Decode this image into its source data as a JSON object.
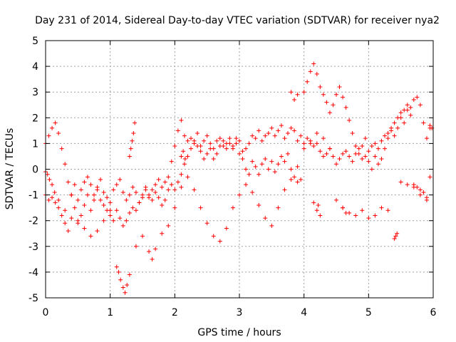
{
  "chart_data": {
    "type": "scatter",
    "title": "Day 231 of 2014, Sidereal Day-to-day VTEC variation (SDTVAR) for receiver nya2",
    "xlabel": "GPS time / hours",
    "ylabel": "SDTVAR / TECUs",
    "xlim": [
      0,
      6
    ],
    "ylim": [
      -5,
      5
    ],
    "xticks": [
      "0",
      "1",
      "2",
      "3",
      "4",
      "5",
      "6"
    ],
    "yticks": [
      "5",
      "4",
      "3",
      "2",
      "1",
      "0",
      "-1",
      "-2",
      "-3",
      "-4",
      "-5"
    ],
    "grid": true,
    "marker": "+",
    "color": "#ff0000",
    "series": [
      {
        "name": "SDTVAR",
        "x": [
          0.0,
          0.05,
          0.1,
          0.15,
          0.2,
          0.25,
          0.3,
          0.35,
          0.4,
          0.45,
          0.5,
          0.55,
          0.6,
          0.65,
          0.7,
          0.75,
          0.8,
          0.85,
          0.9,
          0.95,
          1.0,
          1.05,
          1.1,
          1.15,
          1.2,
          1.25,
          1.3,
          1.35,
          1.4,
          1.45,
          1.5,
          1.55,
          1.6,
          1.65,
          1.7,
          1.75,
          1.8,
          1.85,
          1.9,
          1.95,
          2.0,
          2.05,
          2.1,
          2.15,
          2.2,
          2.25,
          2.3,
          2.35,
          2.4,
          2.45,
          2.5,
          2.55,
          2.6,
          2.65,
          2.7,
          2.75,
          2.8,
          2.85,
          2.9,
          2.95,
          3.0,
          3.05,
          3.1,
          3.15,
          3.2,
          3.25,
          3.3,
          3.35,
          3.4,
          3.45,
          3.5,
          3.55,
          3.6,
          3.65,
          3.7,
          3.75,
          3.8,
          3.85,
          3.9,
          3.95,
          4.0,
          4.05,
          4.1,
          4.15,
          4.2,
          4.25,
          4.3,
          4.35,
          4.4,
          4.45,
          4.5,
          4.55,
          4.6,
          4.65,
          4.7,
          4.75,
          4.8,
          4.85,
          4.9,
          4.95,
          5.0,
          5.05,
          5.1,
          5.15,
          5.2,
          5.25,
          5.3,
          5.35,
          5.4,
          5.45,
          5.5,
          5.55,
          5.6,
          5.65,
          5.7,
          5.75,
          5.8,
          5.85,
          5.9,
          5.95,
          0.0,
          0.05,
          0.1,
          0.15,
          0.2,
          0.25,
          0.3,
          0.35,
          0.4,
          0.45,
          0.5,
          0.55,
          0.6,
          0.65,
          0.7,
          0.75,
          0.8,
          0.85,
          0.9,
          0.95,
          1.0,
          1.05,
          1.1,
          1.15,
          1.2,
          1.25,
          1.3,
          1.35,
          1.4,
          1.45,
          1.5,
          1.55,
          1.6,
          1.65,
          1.7,
          1.75,
          1.8,
          1.85,
          1.9,
          1.95,
          2.0,
          2.05,
          2.1,
          2.15,
          2.2,
          2.25,
          2.3,
          2.35,
          2.4,
          2.45,
          2.5,
          2.55,
          2.6,
          2.65,
          2.7,
          2.75,
          2.8,
          2.85,
          2.9,
          2.95,
          3.0,
          3.05,
          3.1,
          3.15,
          3.2,
          3.25,
          3.3,
          3.35,
          3.4,
          3.45,
          3.5,
          3.55,
          3.6,
          3.65,
          3.7,
          3.75,
          3.8,
          3.85,
          3.9,
          3.95,
          4.0,
          4.05,
          4.1,
          4.15,
          4.2,
          4.25,
          4.3,
          4.35,
          4.4,
          4.45,
          4.5,
          4.55,
          4.6,
          4.65,
          4.7,
          4.75,
          4.8,
          4.85,
          4.9,
          4.95,
          5.0,
          5.05,
          5.1,
          5.15,
          5.2,
          5.25,
          5.3,
          5.35,
          5.4,
          5.45,
          5.5,
          5.55,
          5.6,
          5.65,
          5.7,
          5.75,
          5.8,
          5.85,
          5.9,
          5.95,
          0.0,
          0.03,
          0.06,
          0.1,
          0.14,
          0.2,
          0.3,
          0.4,
          0.5,
          0.6,
          0.7,
          0.8,
          0.9,
          1.0,
          1.1,
          1.13,
          1.16,
          1.2,
          1.23,
          1.26,
          1.3,
          1.4,
          1.5,
          1.6,
          1.65,
          1.7,
          1.8,
          1.9,
          2.0,
          2.1,
          2.2,
          2.3,
          2.4,
          2.5,
          2.6,
          2.7,
          2.8,
          2.9,
          3.0,
          3.1,
          3.2,
          3.3,
          3.4,
          3.5,
          3.6,
          3.7,
          3.8,
          3.9,
          4.0,
          4.1,
          4.2,
          4.3,
          4.4,
          4.5,
          4.6,
          4.7,
          4.8,
          4.9,
          5.0,
          5.1,
          5.2,
          5.3,
          5.4,
          5.42,
          5.44,
          5.5,
          5.6,
          5.7,
          5.8,
          5.9,
          1.3,
          1.32,
          1.34,
          1.36,
          1.38,
          2.1,
          2.13,
          2.16,
          3.8,
          3.85,
          3.9,
          4.15,
          4.2,
          4.22,
          4.25,
          4.6,
          4.65,
          5.95,
          5.98
        ],
        "y": [
          -1.0,
          -1.2,
          -1.1,
          -1.3,
          -1.5,
          -1.8,
          -2.1,
          -2.4,
          -1.0,
          -1.5,
          -2.0,
          -1.8,
          -1.4,
          -1.0,
          -1.6,
          -1.2,
          -0.8,
          -1.2,
          -1.4,
          -1.6,
          -1.8,
          -2.0,
          -1.6,
          -1.9,
          -2.2,
          -2.0,
          -1.7,
          -1.5,
          -1.6,
          -1.3,
          -1.1,
          -0.7,
          -1.0,
          -1.2,
          -0.9,
          -1.1,
          -1.4,
          -1.2,
          -0.8,
          0.3,
          0.9,
          1.5,
          1.9,
          1.3,
          1.1,
          1.2,
          1.0,
          1.4,
          0.9,
          1.1,
          1.3,
          1.0,
          0.8,
          1.1,
          1.2,
          0.9,
          1.0,
          1.2,
          0.8,
          1.0,
          1.1,
          0.7,
          0.8,
          1.0,
          1.3,
          1.2,
          1.5,
          1.1,
          1.3,
          1.4,
          1.6,
          1.3,
          1.5,
          1.7,
          1.2,
          1.4,
          1.6,
          1.5,
          1.1,
          1.3,
          1.0,
          1.2,
          1.1,
          0.9,
          1.0,
          0.7,
          0.5,
          0.6,
          0.8,
          0.5,
          0.2,
          0.4,
          0.6,
          0.7,
          0.5,
          0.3,
          0.6,
          0.8,
          0.4,
          0.5,
          0.7,
          0.9,
          1.0,
          0.8,
          1.1,
          1.3,
          1.4,
          1.6,
          1.8,
          2.0,
          2.2,
          2.3,
          2.5,
          2.4,
          2.7,
          2.8,
          2.5,
          1.8,
          1.2,
          1.6,
          1.0,
          1.3,
          1.6,
          1.8,
          1.4,
          0.8,
          0.2,
          -0.5,
          -1.0,
          -0.6,
          -1.2,
          -0.8,
          -0.5,
          -0.3,
          -0.6,
          -1.0,
          -0.7,
          -0.4,
          -0.9,
          -1.1,
          -1.3,
          -0.8,
          -0.6,
          -0.4,
          -0.9,
          -1.2,
          -1.0,
          -0.7,
          -0.9,
          -1.3,
          -1.0,
          -0.8,
          -1.1,
          -0.8,
          -0.6,
          -0.4,
          -0.7,
          -0.5,
          -0.3,
          -0.6,
          -0.8,
          -0.5,
          -0.2,
          0.2,
          0.5,
          0.8,
          1.1,
          0.9,
          0.7,
          0.4,
          0.6,
          0.8,
          0.4,
          0.6,
          0.9,
          1.1,
          0.8,
          1.0,
          0.9,
          1.2,
          0.6,
          0.4,
          0.0,
          -0.2,
          0.3,
          0.1,
          -0.2,
          0.2,
          0.4,
          0.0,
          0.3,
          -0.1,
          0.2,
          0.5,
          0.3,
          0.6,
          0.0,
          -0.3,
          -0.5,
          -0.4,
          3.0,
          3.4,
          3.8,
          4.1,
          3.7,
          3.2,
          2.9,
          2.6,
          2.2,
          2.5,
          2.9,
          3.2,
          2.8,
          2.4,
          1.9,
          1.4,
          0.9,
          0.6,
          0.9,
          1.2,
          0.3,
          0.0,
          0.5,
          0.2,
          0.4,
          0.8,
          1.2,
          1.5,
          1.3,
          1.6,
          2.0,
          1.8,
          2.3,
          2.1,
          -0.6,
          -0.7,
          -0.8,
          -0.9,
          -1.1,
          -0.3,
          -0.1,
          -0.2,
          -0.4,
          -0.6,
          -0.9,
          -1.2,
          -1.6,
          -1.9,
          -2.1,
          -2.3,
          -2.6,
          -2.4,
          -2.0,
          -1.6,
          -3.8,
          -4.0,
          -4.3,
          -4.6,
          -4.8,
          -4.5,
          -4.1,
          -3.0,
          -2.6,
          -3.2,
          -3.5,
          -3.1,
          -2.5,
          -2.2,
          -1.5,
          -0.7,
          -0.3,
          -0.8,
          -1.5,
          -2.1,
          -2.6,
          -2.8,
          -2.3,
          -1.5,
          -1.0,
          -0.6,
          -0.9,
          -1.4,
          -1.9,
          -2.2,
          -1.5,
          -0.8,
          -0.4,
          0.1,
          0.8,
          1.0,
          1.4,
          1.2,
          0.8,
          -1.2,
          -1.5,
          -1.7,
          -1.8,
          -1.6,
          -1.9,
          -1.8,
          -1.5,
          -1.6,
          -2.7,
          -2.6,
          -2.5,
          -0.5,
          -0.6,
          -0.7,
          -1.0,
          -1.2,
          0.5,
          0.8,
          1.1,
          1.4,
          1.8,
          0.5,
          0.7,
          0.4,
          3.0,
          2.7,
          2.9,
          -1.3,
          -1.6,
          -1.4,
          -1.8,
          -1.5,
          -1.7,
          1.7,
          1.6
        ]
      }
    ]
  }
}
